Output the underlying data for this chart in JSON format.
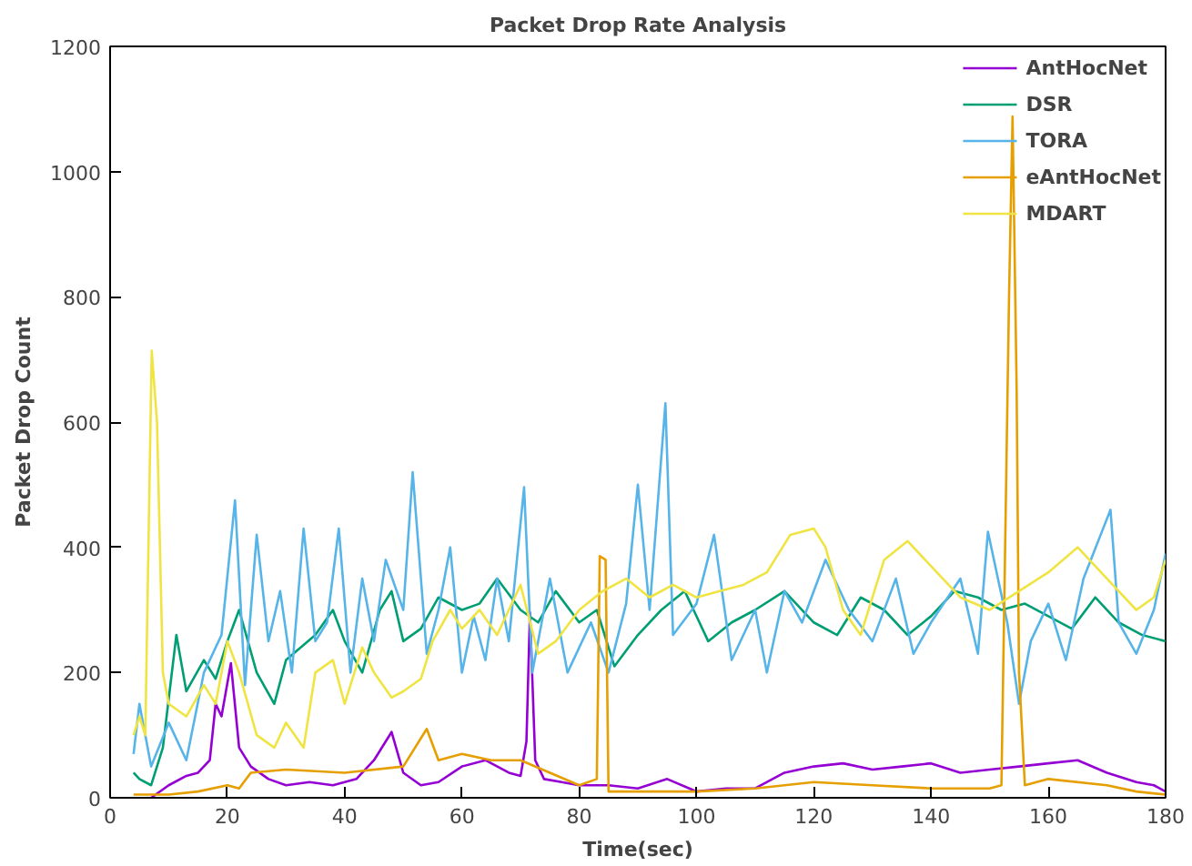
{
  "chart_data": {
    "type": "line",
    "title": "Packet Drop Rate Analysis",
    "xlabel": "Time(sec)",
    "ylabel": "Packet Drop Count",
    "xlim": [
      0,
      180
    ],
    "ylim": [
      0,
      1200
    ],
    "xticks": [
      0,
      20,
      40,
      60,
      80,
      100,
      120,
      140,
      160,
      180
    ],
    "yticks": [
      0,
      200,
      400,
      600,
      800,
      1000,
      1200
    ],
    "grid": false,
    "legend": "top right",
    "marker": "none",
    "line_style": "solid",
    "series": [
      {
        "name": "AntHocNet",
        "color": "#9400d3",
        "x": [
          7,
          10,
          13,
          15,
          17,
          18,
          19,
          20.6,
          22,
          24,
          27,
          30,
          34,
          38,
          42,
          45,
          48,
          50,
          53,
          56,
          60,
          64,
          68,
          70,
          71,
          71.6,
          72.5,
          74,
          77,
          80,
          85,
          90,
          95,
          100,
          105,
          110,
          115,
          120,
          125,
          130,
          135,
          140,
          145,
          150,
          155,
          160,
          165,
          170,
          175,
          178,
          180
        ],
        "values": [
          0,
          20,
          35,
          40,
          60,
          150,
          130,
          215,
          80,
          50,
          30,
          20,
          25,
          20,
          30,
          60,
          105,
          40,
          20,
          25,
          50,
          60,
          40,
          35,
          90,
          296,
          60,
          30,
          25,
          20,
          20,
          15,
          30,
          10,
          15,
          15,
          40,
          50,
          55,
          45,
          50,
          55,
          40,
          45,
          50,
          55,
          60,
          40,
          25,
          20,
          10
        ]
      },
      {
        "name": "DSR",
        "color": "#009e73",
        "x": [
          4,
          5,
          7,
          9,
          11.3,
          13,
          16,
          18,
          20,
          22,
          25,
          28,
          30,
          35,
          38,
          40,
          43,
          46,
          48,
          50,
          53,
          56,
          60,
          63,
          66,
          70,
          73,
          76,
          80,
          83,
          86,
          90,
          94,
          98,
          102,
          106,
          110,
          115,
          120,
          124,
          128,
          132,
          136,
          140,
          144,
          148,
          152,
          156,
          160,
          164,
          168,
          172,
          176,
          180
        ],
        "values": [
          40,
          30,
          20,
          80,
          260,
          170,
          220,
          190,
          250,
          300,
          200,
          150,
          220,
          260,
          300,
          250,
          200,
          300,
          330,
          250,
          270,
          320,
          300,
          310,
          350,
          300,
          280,
          330,
          280,
          300,
          210,
          260,
          300,
          330,
          250,
          280,
          300,
          330,
          280,
          260,
          320,
          300,
          260,
          290,
          330,
          320,
          300,
          310,
          290,
          270,
          320,
          280,
          260,
          250
        ]
      },
      {
        "name": "TORA",
        "color": "#56b4e9",
        "x": [
          4,
          5,
          7,
          10,
          13,
          16,
          19,
          21.3,
          23,
          25,
          27,
          29,
          31,
          33,
          35,
          37,
          39,
          41,
          43,
          45,
          47,
          50,
          51.6,
          54,
          56,
          58,
          60,
          62,
          64,
          66,
          68,
          70.6,
          72,
          75,
          78,
          82,
          85,
          88,
          90,
          92,
          94.7,
          96,
          100,
          103,
          106,
          110,
          112,
          115,
          118,
          122,
          126,
          130,
          134,
          137,
          140,
          145,
          148,
          149.7,
          153,
          155,
          157,
          160,
          163,
          166,
          170.6,
          172,
          175,
          178,
          180
        ],
        "values": [
          70,
          150,
          50,
          120,
          60,
          200,
          260,
          475,
          180,
          420,
          250,
          330,
          200,
          430,
          250,
          280,
          430,
          200,
          350,
          250,
          380,
          300,
          520,
          230,
          300,
          400,
          200,
          290,
          220,
          350,
          250,
          496,
          200,
          350,
          200,
          280,
          200,
          310,
          500,
          300,
          630,
          260,
          310,
          420,
          220,
          300,
          200,
          330,
          280,
          380,
          300,
          250,
          350,
          230,
          280,
          350,
          230,
          425,
          280,
          150,
          250,
          310,
          220,
          350,
          460,
          280,
          230,
          300,
          390
        ]
      },
      {
        "name": "eAntHocNet",
        "color": "#e69f00",
        "x": [
          4,
          10,
          15,
          20,
          22,
          24,
          30,
          40,
          50,
          54,
          56,
          60,
          65,
          70,
          75,
          80,
          83,
          83.5,
          84.5,
          85,
          90,
          100,
          110,
          120,
          130,
          140,
          150,
          152,
          153.3,
          153.9,
          154.6,
          155,
          156,
          160,
          170,
          175,
          180
        ],
        "values": [
          5,
          5,
          10,
          20,
          15,
          40,
          45,
          40,
          50,
          110,
          60,
          70,
          60,
          60,
          40,
          20,
          30,
          386,
          380,
          10,
          10,
          10,
          15,
          25,
          20,
          15,
          15,
          20,
          800,
          1088,
          650,
          200,
          20,
          30,
          20,
          10,
          5
        ]
      },
      {
        "name": "MDART",
        "color": "#f0e442",
        "x": [
          4,
          5,
          6,
          7.1,
          8,
          9,
          10,
          13,
          16,
          18,
          20,
          22,
          25,
          28,
          30,
          33,
          35,
          38,
          40,
          43,
          45,
          48,
          50,
          53,
          55,
          58,
          60,
          63,
          66,
          70,
          73,
          76,
          80,
          84,
          88,
          92,
          96,
          100,
          104,
          108,
          112,
          116,
          120,
          122,
          125,
          128,
          132,
          136,
          140,
          145,
          150,
          155,
          160,
          165,
          170,
          175,
          178,
          180
        ],
        "values": [
          100,
          130,
          100,
          714,
          600,
          200,
          150,
          130,
          180,
          150,
          250,
          200,
          100,
          80,
          120,
          80,
          200,
          220,
          150,
          240,
          200,
          160,
          170,
          190,
          250,
          300,
          270,
          300,
          260,
          340,
          230,
          250,
          300,
          330,
          350,
          320,
          340,
          320,
          330,
          340,
          360,
          420,
          430,
          400,
          300,
          260,
          380,
          410,
          370,
          320,
          300,
          330,
          360,
          400,
          350,
          300,
          320,
          380
        ]
      }
    ]
  }
}
